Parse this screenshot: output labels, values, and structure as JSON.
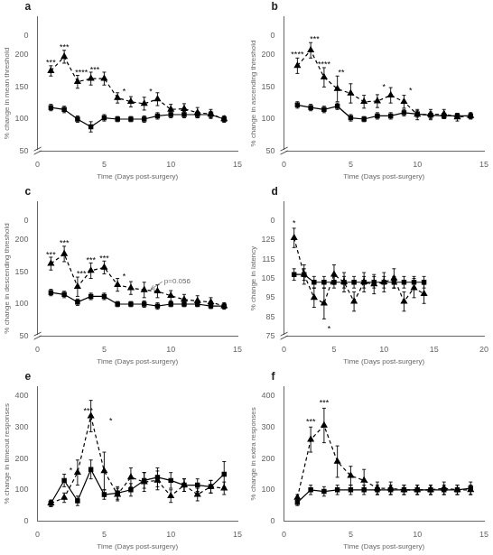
{
  "chart_data": [
    {
      "type": "line",
      "title": "a",
      "xlabel": "Time (Days post-surgery)",
      "ylabel": "% change in mean threshold",
      "x": [
        1,
        2,
        3,
        4,
        5,
        6,
        7,
        8,
        9,
        10,
        11,
        12,
        13,
        14
      ],
      "xlim": [
        0,
        15
      ],
      "xticks": [
        0,
        5,
        10,
        15
      ],
      "ylim": [
        50,
        230
      ],
      "yticks": [
        50,
        100,
        150,
        200
      ],
      "y2lim": [
        0,
        10
      ],
      "y2ticks": [
        0
      ],
      "grid": false,
      "series": [
        {
          "color": "#000000",
          "marker": "square",
          "line_style": "solid",
          "values": [
            118,
            115,
            100,
            88,
            102,
            100,
            100,
            100,
            105,
            107,
            107,
            107,
            107,
            100
          ],
          "errors": [
            5,
            5,
            5,
            8,
            5,
            4,
            4,
            5,
            5,
            5,
            5,
            5,
            5,
            4
          ]
        },
        {
          "color": "#000000",
          "marker": "triangle",
          "line_style": "dashed",
          "values": [
            175,
            197,
            158,
            163,
            163,
            133,
            127,
            124,
            131,
            115,
            116,
            110,
            108,
            100
          ],
          "errors": [
            8,
            10,
            10,
            10,
            10,
            8,
            8,
            10,
            10,
            8,
            8,
            8,
            7,
            5
          ]
        }
      ],
      "annotations": [
        {
          "x": 1.0,
          "y": 186,
          "text": "***",
          "color": "#000000"
        },
        {
          "x": 2.0,
          "y": 210,
          "text": "***",
          "color": "#000000"
        },
        {
          "x": 3.3,
          "y": 170,
          "text": "****",
          "color": "#000000"
        },
        {
          "x": 4.3,
          "y": 175,
          "text": "***",
          "color": "#000000"
        },
        {
          "x": 6.5,
          "y": 140,
          "text": "*",
          "color": "#000000"
        },
        {
          "x": 8.5,
          "y": 140,
          "text": "*",
          "color": "#000000"
        }
      ]
    },
    {
      "type": "line",
      "title": "b",
      "xlabel": "Time (Days post-surgery)",
      "ylabel": "% change in ascending threshold",
      "x": [
        1,
        2,
        3,
        4,
        5,
        6,
        7,
        8,
        9,
        10,
        11,
        12,
        13,
        14
      ],
      "xlim": [
        0,
        15
      ],
      "xticks": [
        0,
        5,
        10,
        15
      ],
      "ylim": [
        50,
        230
      ],
      "yticks": [
        50,
        100,
        150,
        200
      ],
      "y2lim": [
        0,
        10
      ],
      "y2ticks": [
        0
      ],
      "grid": false,
      "series": [
        {
          "color": "#000000",
          "marker": "square",
          "line_style": "solid",
          "values": [
            122,
            118,
            115,
            120,
            102,
            100,
            105,
            105,
            110,
            108,
            106,
            105,
            105,
            105
          ],
          "errors": [
            5,
            5,
            5,
            5,
            5,
            4,
            5,
            5,
            5,
            5,
            5,
            4,
            4,
            4
          ]
        },
        {
          "color": "#000000",
          "marker": "triangle",
          "line_style": "dashed",
          "values": [
            183,
            207,
            165,
            147,
            140,
            127,
            128,
            137,
            127,
            107,
            107,
            108,
            103,
            105
          ],
          "errors": [
            12,
            12,
            15,
            20,
            15,
            10,
            10,
            12,
            10,
            8,
            8,
            7,
            6,
            5
          ]
        }
      ],
      "annotations": [
        {
          "x": 1.0,
          "y": 198,
          "text": "****",
          "color": "#000000"
        },
        {
          "x": 2.3,
          "y": 222,
          "text": "***",
          "color": "#000000"
        },
        {
          "x": 3.0,
          "y": 183,
          "text": "****",
          "color": "#000000"
        },
        {
          "x": 4.3,
          "y": 170,
          "text": "**",
          "color": "#000000"
        },
        {
          "x": 7.5,
          "y": 148,
          "text": "*",
          "color": "#000000"
        },
        {
          "x": 9.5,
          "y": 142,
          "text": "*",
          "color": "#000000"
        }
      ]
    },
    {
      "type": "line",
      "title": "c",
      "xlabel": "Time (Days post-surgery)",
      "ylabel": "% change in descending threshold",
      "x": [
        1,
        2,
        3,
        4,
        5,
        6,
        7,
        8,
        9,
        10,
        11,
        12,
        13,
        14
      ],
      "xlim": [
        0,
        15
      ],
      "xticks": [
        0,
        5,
        10,
        15
      ],
      "ylim": [
        50,
        230
      ],
      "yticks": [
        50,
        100,
        150,
        200
      ],
      "y2lim": [
        0,
        10
      ],
      "y2ticks": [
        0
      ],
      "grid": false,
      "series": [
        {
          "color": "#000000",
          "marker": "square",
          "line_style": "solid",
          "values": [
            118,
            115,
            103,
            112,
            112,
            100,
            100,
            100,
            97,
            100,
            100,
            100,
            97,
            97
          ],
          "errors": [
            5,
            5,
            5,
            5,
            5,
            4,
            4,
            5,
            5,
            4,
            4,
            4,
            4,
            4
          ]
        },
        {
          "color": "#000000",
          "marker": "triangle",
          "line_style": "dashed",
          "values": [
            163,
            178,
            127,
            152,
            157,
            130,
            125,
            122,
            120,
            113,
            107,
            105,
            103,
            97
          ],
          "errors": [
            10,
            12,
            15,
            12,
            10,
            10,
            10,
            12,
            10,
            8,
            8,
            8,
            7,
            5
          ]
        }
      ],
      "annotations": [
        {
          "x": 1.0,
          "y": 175,
          "text": "***",
          "color": "#000000"
        },
        {
          "x": 2.0,
          "y": 192,
          "text": "***",
          "color": "#000000"
        },
        {
          "x": 3.3,
          "y": 145,
          "text": "***",
          "color": "#000000"
        },
        {
          "x": 4.0,
          "y": 166,
          "text": "***",
          "color": "#000000"
        },
        {
          "x": 5.0,
          "y": 169,
          "text": "***",
          "color": "#000000"
        },
        {
          "x": 6.5,
          "y": 141,
          "text": "*",
          "color": "#000000"
        },
        {
          "x": 9.5,
          "y": 135,
          "text": "p=0.056",
          "color": "#696969",
          "arrow_x": 8.5,
          "arrow_y": 123
        }
      ]
    },
    {
      "type": "line",
      "title": "d",
      "xlabel": "Time (Days post-surgery)",
      "ylabel": "% change in latency",
      "x": [
        1,
        2,
        3,
        4,
        5,
        6,
        7,
        8,
        9,
        10,
        11,
        12,
        13,
        14
      ],
      "xlim": [
        0,
        20
      ],
      "xticks": [
        0,
        5,
        10,
        15,
        20
      ],
      "ylim": [
        75,
        135
      ],
      "yticks": [
        75,
        85,
        95,
        105,
        115,
        125
      ],
      "y2lim": [
        0,
        5
      ],
      "y2ticks": [
        0
      ],
      "grid": false,
      "series": [
        {
          "color": "#000000",
          "marker": "square",
          "line_style": "solid",
          "values": [
            107,
            107,
            103,
            103,
            103,
            103,
            103,
            103,
            103,
            103,
            103,
            103,
            103,
            103
          ],
          "errors": [
            3,
            3,
            3,
            3,
            3,
            3,
            3,
            3,
            3,
            3,
            3,
            3,
            3,
            3
          ]
        },
        {
          "color": "#000000",
          "marker": "triangle",
          "line_style": "dashed",
          "values": [
            126,
            107,
            95,
            92,
            107,
            103,
            93,
            103,
            102,
            103,
            105,
            93,
            100,
            97
          ],
          "errors": [
            5,
            5,
            5,
            8,
            5,
            5,
            5,
            5,
            5,
            5,
            5,
            5,
            5,
            5
          ]
        }
      ],
      "annotations": [
        {
          "x": 1.0,
          "y": 133,
          "text": "*",
          "color": "#000000"
        },
        {
          "x": 4.5,
          "y": 78,
          "text": "*",
          "color": "#000000"
        }
      ]
    },
    {
      "type": "line",
      "title": "e",
      "xlabel": "Time (Days post-surgery)",
      "ylabel": "% change in timeout responses",
      "x": [
        1,
        2,
        3,
        4,
        5,
        6,
        7,
        8,
        9,
        10,
        11,
        12,
        13,
        14
      ],
      "xlim": [
        0,
        15
      ],
      "xticks": [
        0,
        5,
        10,
        15
      ],
      "ylim": [
        0,
        430
      ],
      "yticks": [
        0,
        100,
        200,
        300,
        400
      ],
      "grid": false,
      "series": [
        {
          "color": "#000000",
          "marker": "square",
          "line_style": "solid",
          "values": [
            57,
            130,
            65,
            165,
            85,
            90,
            100,
            130,
            140,
            130,
            115,
            115,
            110,
            150
          ],
          "errors": [
            10,
            20,
            15,
            30,
            15,
            20,
            20,
            25,
            30,
            25,
            20,
            20,
            20,
            40
          ]
        },
        {
          "color": "#000000",
          "marker": "triangle",
          "line_style": "dashed",
          "values": [
            57,
            75,
            155,
            335,
            160,
            85,
            140,
            125,
            130,
            80,
            115,
            85,
            110,
            105
          ],
          "errors": [
            10,
            15,
            40,
            50,
            60,
            20,
            30,
            30,
            30,
            20,
            20,
            20,
            20,
            20
          ]
        }
      ],
      "annotations": [
        {
          "x": 2.5,
          "y": 158,
          "text": "*",
          "color": "#000000"
        },
        {
          "x": 3.8,
          "y": 348,
          "text": "***",
          "color": "#000000"
        },
        {
          "x": 5.5,
          "y": 315,
          "text": "*",
          "color": "#000000"
        }
      ]
    },
    {
      "type": "line",
      "title": "f",
      "xlabel": "Time (Days post-surgery)",
      "ylabel": "% change in extra responses",
      "x": [
        1,
        2,
        3,
        4,
        5,
        6,
        7,
        8,
        9,
        10,
        11,
        12,
        13,
        14
      ],
      "xlim": [
        0,
        15
      ],
      "xticks": [
        0,
        5,
        10,
        15
      ],
      "ylim": [
        0,
        430
      ],
      "yticks": [
        0,
        100,
        200,
        300,
        400
      ],
      "grid": false,
      "series": [
        {
          "color": "#000000",
          "marker": "square",
          "line_style": "solid",
          "values": [
            60,
            100,
            95,
            100,
            100,
            100,
            100,
            100,
            100,
            100,
            100,
            100,
            100,
            105
          ],
          "errors": [
            10,
            15,
            15,
            15,
            15,
            15,
            15,
            15,
            15,
            15,
            15,
            15,
            15,
            20
          ]
        },
        {
          "color": "#000000",
          "marker": "triangle",
          "line_style": "dashed",
          "values": [
            75,
            260,
            305,
            190,
            145,
            130,
            105,
            105,
            100,
            100,
            100,
            105,
            100,
            100
          ],
          "errors": [
            10,
            40,
            55,
            50,
            30,
            35,
            20,
            20,
            15,
            15,
            15,
            20,
            15,
            15
          ]
        }
      ],
      "annotations": [
        {
          "x": 2.0,
          "y": 313,
          "text": "***",
          "color": "#000000"
        },
        {
          "x": 3.0,
          "y": 372,
          "text": "***",
          "color": "#000000"
        }
      ]
    }
  ]
}
